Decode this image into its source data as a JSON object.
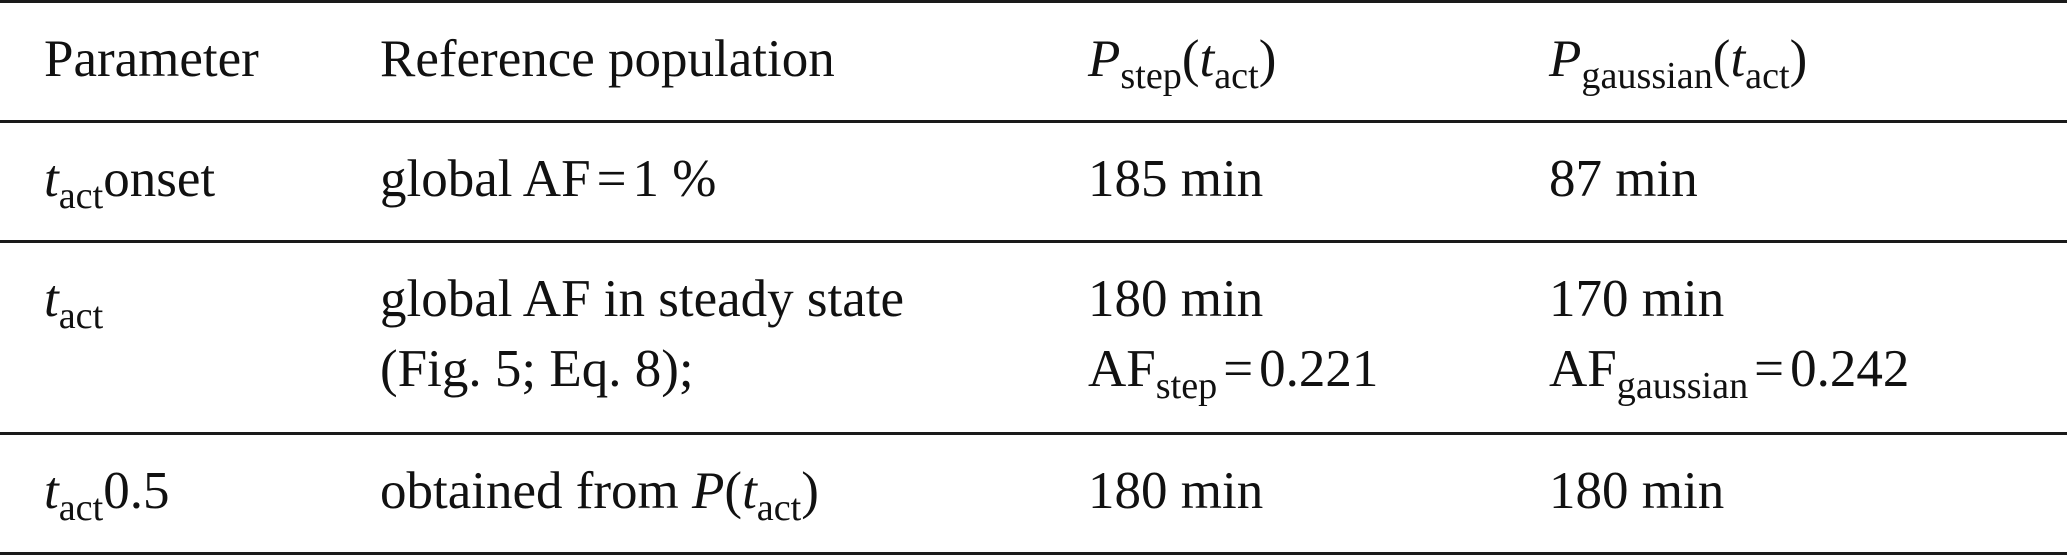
{
  "header": {
    "parameter": "Parameter",
    "reference": "Reference population",
    "p_step": {
      "base": "P",
      "sub": "step",
      "arg_base": "t",
      "arg_sub": "act"
    },
    "p_gaussian": {
      "base": "P",
      "sub": "gaussian",
      "arg_base": "t",
      "arg_sub": "act"
    }
  },
  "rows": [
    {
      "param": {
        "base": "t",
        "sub": "act",
        "suffix": "onset"
      },
      "reference": {
        "text": "global AF",
        "eq": "=",
        "value": "1 %"
      },
      "step": "185 min",
      "gaussian": "87 min"
    },
    {
      "param": {
        "base": "t",
        "sub": "act",
        "suffix": ""
      },
      "reference": {
        "line1": "global AF in steady state",
        "line2": "(Fig. 5; Eq. 8);"
      },
      "step": {
        "line1": "180 min",
        "af_base": "AF",
        "af_sub": "step",
        "eq": "=",
        "af_value": "0.221"
      },
      "gaussian": {
        "line1": "170 min",
        "af_base": "AF",
        "af_sub": "gaussian",
        "eq": "=",
        "af_value": "0.242"
      }
    },
    {
      "param": {
        "base": "t",
        "sub": "act",
        "suffix": "0.5"
      },
      "reference": {
        "text": "obtained from",
        "p_base": "P",
        "arg_base": "t",
        "arg_sub": "act"
      },
      "step": "180 min",
      "gaussian": "180 min"
    }
  ]
}
